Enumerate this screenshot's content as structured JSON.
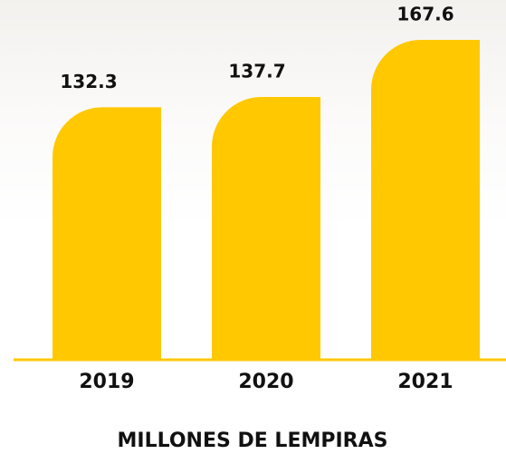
{
  "chart_data": {
    "type": "bar",
    "title": "MILLONES DE LEMPIRAS",
    "categories": [
      "2019",
      "2020",
      "2021"
    ],
    "values": [
      132.3,
      137.7,
      167.6
    ],
    "color": "#ffc800"
  }
}
